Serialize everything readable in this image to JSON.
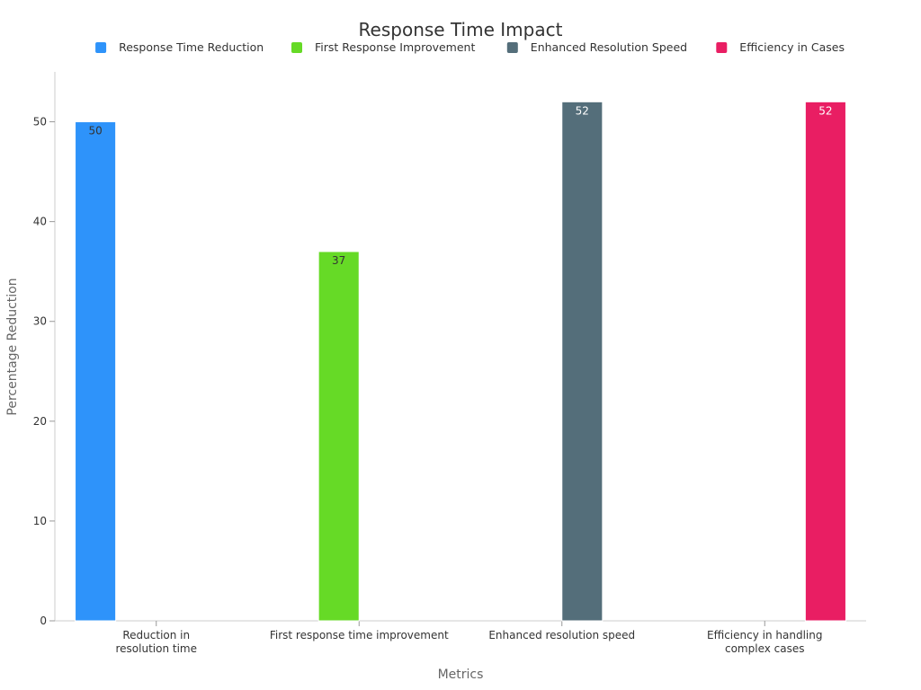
{
  "chart_data": {
    "type": "bar",
    "title": "Response Time Impact",
    "xlabel": "Metrics",
    "ylabel": "Percentage Reduction",
    "ylim": [
      0,
      55
    ],
    "yticks": [
      0,
      10,
      20,
      30,
      40,
      50
    ],
    "grid": false,
    "legend_position": "top-right",
    "categories": [
      [
        "Reduction in",
        "resolution time"
      ],
      [
        "First response time improvement"
      ],
      [
        "Enhanced resolution speed"
      ],
      [
        "Efficiency in handling",
        "complex cases"
      ]
    ],
    "series": [
      {
        "name": "Response Time Reduction",
        "color": "#2e93fa",
        "label_color": "#333333",
        "values": [
          50,
          null,
          null,
          null
        ]
      },
      {
        "name": "First Response Improvement",
        "color": "#66da26",
        "label_color": "#333333",
        "values": [
          null,
          37,
          null,
          null
        ]
      },
      {
        "name": "Enhanced Resolution Speed",
        "color": "#546e7a",
        "label_color": "#ffffff",
        "values": [
          null,
          null,
          52,
          null
        ]
      },
      {
        "name": "Efficiency in Cases",
        "color": "#e91e63",
        "label_color": "#ffffff",
        "values": [
          null,
          null,
          null,
          52
        ]
      }
    ]
  }
}
